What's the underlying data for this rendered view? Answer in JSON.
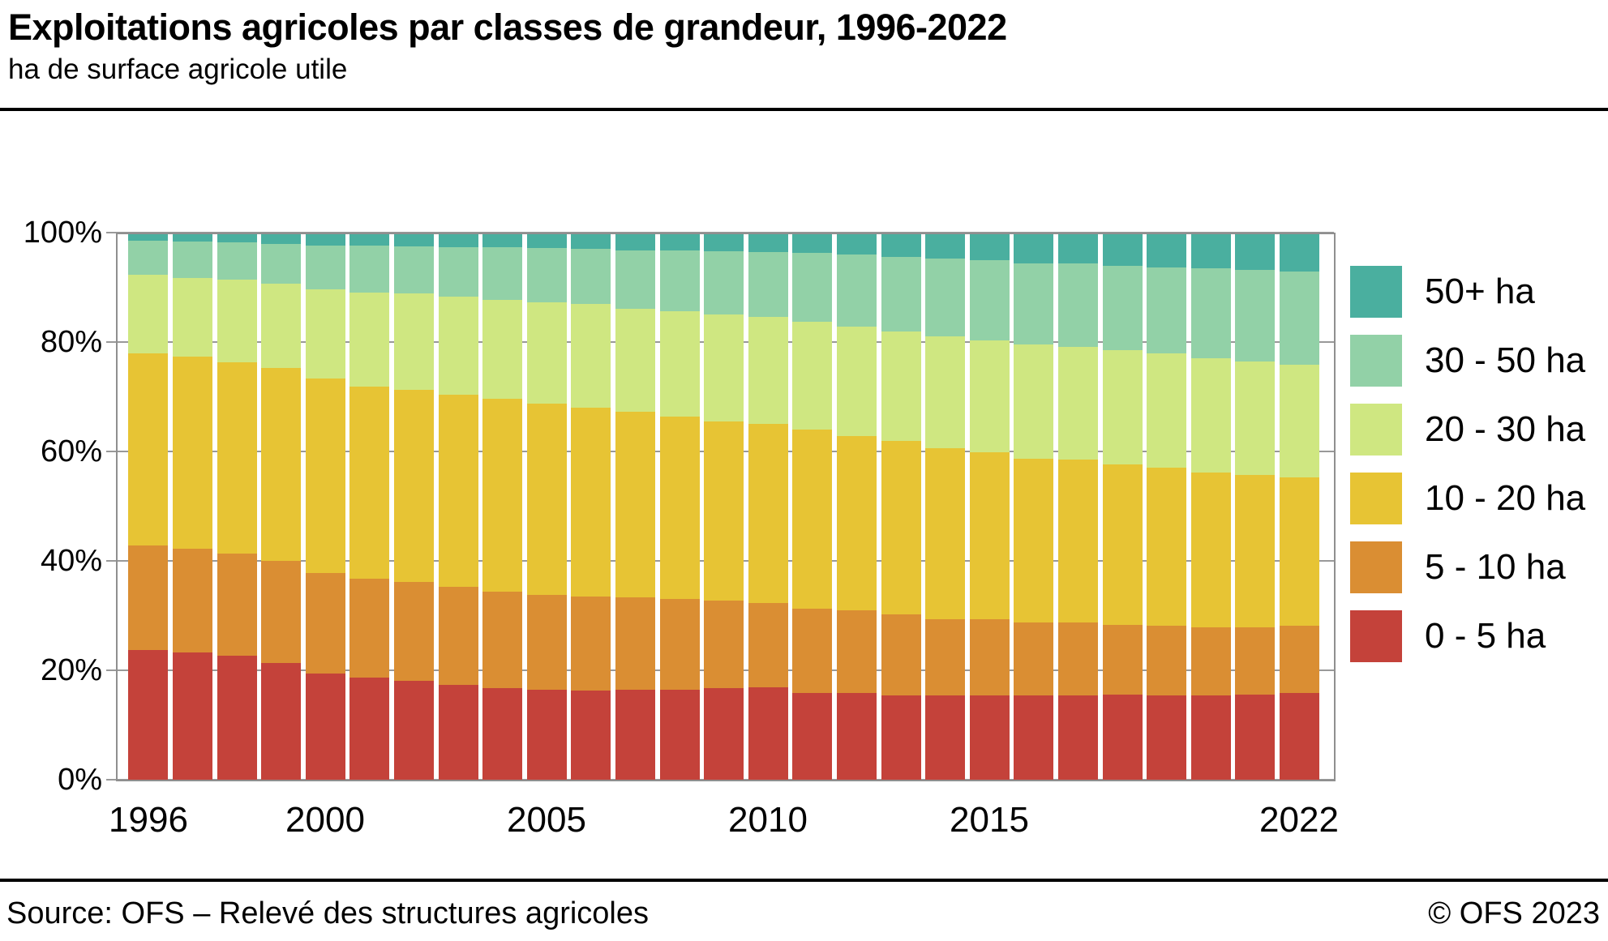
{
  "header": {
    "title": "Exploitations agricoles par classes de grandeur, 1996-2022",
    "subtitle": "ha de surface agricole utile"
  },
  "footer": {
    "source": "Source: OFS – Relevé des structures agricoles",
    "copyright": "© OFS 2023"
  },
  "colors": {
    "grid": "#999999",
    "frame": "#8f8f8f",
    "rule": "#000000"
  },
  "chart_data": {
    "type": "bar",
    "stacked": true,
    "percent": true,
    "title": "Exploitations agricoles par classes de grandeur, 1996-2022",
    "subtitle": "ha de surface agricole utile",
    "xlabel": "",
    "ylabel": "",
    "grid": true,
    "ylim": [
      0,
      100
    ],
    "y_axis": {
      "ticks": [
        0,
        20,
        40,
        60,
        80,
        100
      ],
      "tick_labels": [
        "0%",
        "20%",
        "40%",
        "60%",
        "80%",
        "100%"
      ]
    },
    "x": [
      1996,
      1997,
      1998,
      1999,
      2000,
      2001,
      2002,
      2003,
      2004,
      2005,
      2006,
      2007,
      2008,
      2009,
      2010,
      2011,
      2012,
      2013,
      2014,
      2015,
      2016,
      2017,
      2018,
      2019,
      2020,
      2021,
      2022
    ],
    "x_axis": {
      "labeled_years": [
        1996,
        2000,
        2005,
        2010,
        2015,
        2022
      ]
    },
    "legend": {
      "position": "right",
      "labels_top_to_bottom": [
        "50+ ha",
        "30 - 50 ha",
        "20 - 30 ha",
        "10 - 20 ha",
        "5 - 10 ha",
        "0 - 5 ha"
      ]
    },
    "series": [
      {
        "name": "0 - 5 ha",
        "color": "#c4423a",
        "values": [
          23.7,
          23.3,
          22.7,
          21.4,
          19.4,
          18.6,
          18.1,
          17.3,
          16.8,
          16.4,
          16.3,
          16.4,
          16.5,
          16.8,
          16.9,
          15.9,
          15.8,
          15.4,
          15.4,
          15.4,
          15.4,
          15.4,
          15.5,
          15.4,
          15.4,
          15.6,
          15.9
        ]
      },
      {
        "name": "5 - 10 ha",
        "color": "#da8e33",
        "values": [
          19.1,
          18.9,
          18.6,
          18.6,
          18.4,
          18.2,
          18.0,
          17.9,
          17.5,
          17.4,
          17.2,
          16.9,
          16.5,
          15.9,
          15.4,
          15.4,
          15.1,
          14.8,
          14.0,
          13.9,
          13.4,
          13.3,
          12.8,
          12.7,
          12.4,
          12.3,
          12.2
        ]
      },
      {
        "name": "10 - 20 ha",
        "color": "#e7c434",
        "values": [
          35.1,
          35.1,
          35.0,
          35.2,
          35.5,
          35.1,
          35.2,
          35.2,
          35.3,
          34.9,
          34.5,
          33.9,
          33.3,
          32.8,
          32.7,
          32.7,
          31.9,
          31.7,
          31.2,
          30.5,
          29.9,
          29.8,
          29.4,
          28.9,
          28.4,
          27.8,
          27.1
        ]
      },
      {
        "name": "20 - 30 ha",
        "color": "#cfe781",
        "values": [
          14.4,
          14.4,
          15.1,
          15.4,
          16.4,
          17.1,
          17.6,
          17.9,
          18.1,
          18.6,
          18.9,
          18.9,
          19.4,
          19.6,
          19.6,
          19.7,
          20.0,
          20.1,
          20.5,
          20.5,
          20.9,
          20.6,
          20.8,
          20.9,
          20.9,
          20.8,
          20.6
        ]
      },
      {
        "name": "30 - 50 ha",
        "color": "#92d1a7",
        "values": [
          6.2,
          6.7,
          6.8,
          7.3,
          8.0,
          8.6,
          8.6,
          9.1,
          9.6,
          9.9,
          10.1,
          10.7,
          11.0,
          11.5,
          11.8,
          12.6,
          13.2,
          13.5,
          14.1,
          14.7,
          14.8,
          15.2,
          15.5,
          15.8,
          16.4,
          16.7,
          17.1
        ]
      },
      {
        "name": "50+ ha",
        "color": "#4aaf9f",
        "values": [
          1.5,
          1.6,
          1.8,
          2.1,
          2.3,
          2.4,
          2.5,
          2.6,
          2.7,
          2.8,
          3.0,
          3.2,
          3.3,
          3.4,
          3.6,
          3.7,
          4.0,
          4.5,
          4.8,
          5.0,
          5.6,
          5.7,
          6.0,
          6.3,
          6.5,
          6.8,
          7.1
        ]
      }
    ]
  }
}
